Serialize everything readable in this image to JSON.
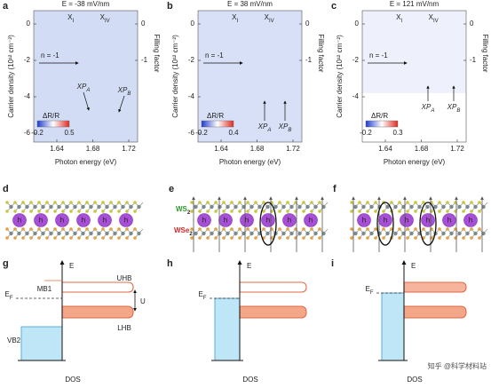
{
  "figure": {
    "top_panels": [
      {
        "label": "a",
        "title": "E = -38 mV/nm",
        "x_label": "Photon energy (eV)",
        "y_label": "Carrier density (10¹² cm⁻²)",
        "y2_label": "Filling factor",
        "x_ticks": [
          "1.64",
          "1.68",
          "1.72"
        ],
        "y_ticks": [
          "0",
          "-2",
          "-4",
          "-6"
        ],
        "y2_ticks": [
          "0",
          "-1"
        ],
        "arrow_label": "n = -1",
        "peak_labels": [
          {
            "main": "X",
            "sub": "I"
          },
          {
            "main": "X",
            "sub": "IV"
          }
        ],
        "xp_labels": [
          {
            "main": "XP",
            "sub": "A"
          },
          {
            "main": "XP",
            "sub": "B"
          }
        ],
        "colorbar_label": "ΔR/R",
        "colorbar_ticks": [
          "-0.2",
          "0.5"
        ]
      },
      {
        "label": "b",
        "title": "E = 38 mV/nm",
        "x_label": "Photon energy (eV)",
        "y_label": "Carrier density (10¹² cm⁻²)",
        "y2_label": "Filling factor",
        "x_ticks": [
          "1.64",
          "1.68",
          "1.72"
        ],
        "y_ticks": [
          "0",
          "-2",
          "-4",
          "-6"
        ],
        "y2_ticks": [
          "0",
          "-1"
        ],
        "arrow_label": "n = -1",
        "peak_labels": [
          {
            "main": "X",
            "sub": "I"
          },
          {
            "main": "X",
            "sub": "IV"
          }
        ],
        "xp_labels": [
          {
            "main": "XP",
            "sub": "A"
          },
          {
            "main": "XP",
            "sub": "B"
          }
        ],
        "colorbar_label": "ΔR/R",
        "colorbar_ticks": [
          "-0.2",
          "0.4"
        ]
      },
      {
        "label": "c",
        "title": "E = 121 mV/nm",
        "x_label": "Photon energy (eV)",
        "y_label": "Carrier density (10¹² cm⁻²)",
        "y2_label": "Filling factor",
        "x_ticks": [
          "1.64",
          "1.68",
          "1.72"
        ],
        "y_ticks": [
          "0",
          "-2",
          "-4"
        ],
        "y2_ticks": [
          "0",
          "-1"
        ],
        "arrow_label": "n = -1",
        "peak_labels": [
          {
            "main": "X",
            "sub": "I"
          },
          {
            "main": "X",
            "sub": "IV"
          }
        ],
        "xp_labels": [
          {
            "main": "XP",
            "sub": "A"
          },
          {
            "main": "XP",
            "sub": "B"
          }
        ],
        "colorbar_label": "ΔR/R",
        "colorbar_ticks": [
          "-0.2",
          "0.3"
        ]
      }
    ],
    "middle_panels": [
      {
        "label": "d"
      },
      {
        "label": "e"
      },
      {
        "label": "f"
      }
    ],
    "layer_labels": {
      "top": {
        "main": "WS",
        "sub": "2"
      },
      "bottom": {
        "main": "WSe",
        "sub": "2"
      }
    },
    "hole_symbol": "h",
    "bottom_panels": [
      {
        "label": "g",
        "energy_axis": "E",
        "fermi": {
          "main": "E",
          "sub": "F"
        },
        "dos_axis": "DOS",
        "texts": {
          "mb1": "MB1",
          "uhb": "UHB",
          "lhb": "LHB",
          "u": "U",
          "vb2": "VB2"
        }
      },
      {
        "label": "h",
        "energy_axis": "E",
        "fermi": {
          "main": "E",
          "sub": "F"
        },
        "dos_axis": "DOS"
      },
      {
        "label": "i",
        "energy_axis": "E",
        "fermi": {
          "main": "E",
          "sub": "F"
        },
        "dos_axis": "DOS"
      }
    ],
    "watermark": "知乎 @科学材料站"
  }
}
